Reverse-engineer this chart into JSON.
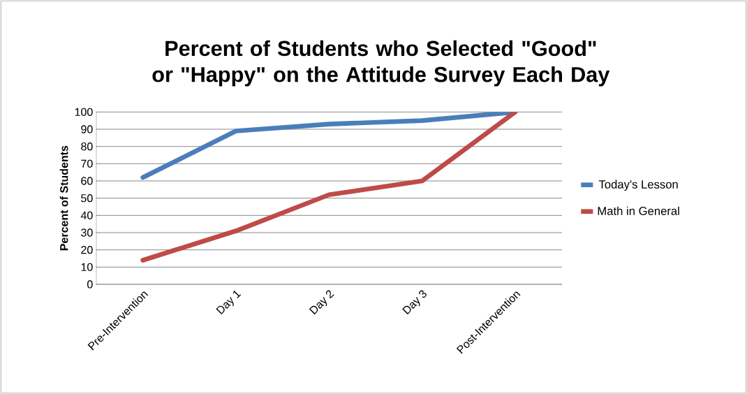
{
  "chart_data": {
    "type": "line",
    "title": "Percent of Students who Selected \"Good\" or \"Happy\" on the Attitude Survey Each Day",
    "ylabel": "Percent of Students",
    "categories": [
      "Pre-Intervention",
      "Day 1",
      "Day 2",
      "Day 3",
      "Post-Intervention"
    ],
    "series": [
      {
        "name": "Today's Lesson",
        "color": "#4a7ebb",
        "values": [
          62,
          89,
          93,
          95,
          100
        ]
      },
      {
        "name": "Math in General",
        "color": "#be4b48",
        "values": [
          14,
          31,
          52,
          60,
          100
        ]
      }
    ],
    "ylim": [
      0,
      100
    ],
    "yticks": [
      0,
      10,
      20,
      30,
      40,
      50,
      60,
      70,
      80,
      90,
      100
    ],
    "grid": "y",
    "legend": "right",
    "marker": "none",
    "line_style": "solid"
  }
}
